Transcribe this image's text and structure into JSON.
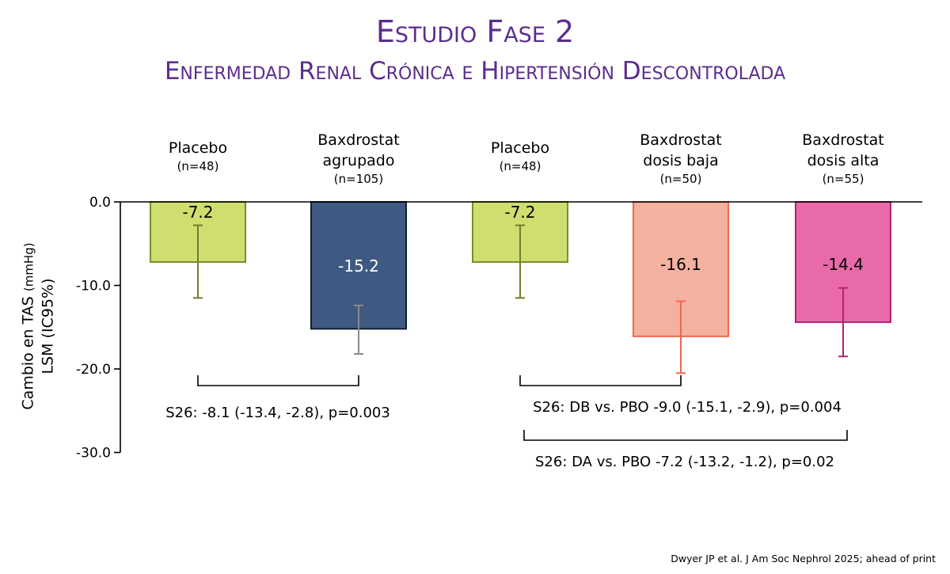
{
  "header": {
    "title": "Estudio Fase 2",
    "subtitle": "Enfermedad Renal Crónica e Hipertensión Descontrolada"
  },
  "chart_data": {
    "type": "bar",
    "ylabel_line1": "Cambio en TAS",
    "ylabel_unit": "(mmHg)",
    "ylabel_line2": "LSM (IC95%)",
    "ylim": [
      -30,
      0
    ],
    "yticks": [
      {
        "value": 0,
        "label": "0.0"
      },
      {
        "value": -10,
        "label": "-10.0"
      },
      {
        "value": -20,
        "label": "-20.0"
      },
      {
        "value": -30,
        "label": "-30.0"
      }
    ],
    "categories": [
      {
        "lines": [
          "Placebo"
        ],
        "n": "(n=48)"
      },
      {
        "lines": [
          "Baxdrostat",
          "agrupado"
        ],
        "n": "(n=105)"
      },
      {
        "lines": [
          "Placebo"
        ],
        "n": "(n=48)"
      },
      {
        "lines": [
          "Baxdrostat",
          "dosis baja"
        ],
        "n": "(n=50)"
      },
      {
        "lines": [
          "Baxdrostat",
          "dosis alta"
        ],
        "n": "(n=55)"
      }
    ],
    "values": [
      -7.2,
      -15.2,
      -7.2,
      -16.1,
      -14.4
    ],
    "value_labels": [
      "-7.2",
      "-15.2",
      "-7.2",
      "-16.1",
      "-14.4"
    ],
    "ci": [
      [
        -11.5,
        -2.8
      ],
      [
        -18.2,
        -12.4
      ],
      [
        -11.5,
        -2.8
      ],
      [
        -20.5,
        -11.9
      ],
      [
        -18.5,
        -10.3
      ]
    ],
    "colors": {
      "fills": [
        "#cfde6e",
        "#3e5a82",
        "#cfde6e",
        "#f4b1a0",
        "#e96aa8"
      ],
      "strokes": [
        "#7b8d2e",
        "#0f1f33",
        "#7b8d2e",
        "#ea6a4f",
        "#b0246e"
      ],
      "errors": [
        "#6e7f2a",
        "#8a8a8a",
        "#6e7f2a",
        "#ea6a4f",
        "#b0246e"
      ],
      "labels": [
        "#000000",
        "#ffffff",
        "#000000",
        "#000000",
        "#000000"
      ],
      "title": "#5b2d8e"
    },
    "comparisons": [
      {
        "from": 0,
        "to": 1,
        "text": "S26: -8.1 (-13.4, -2.8), p=0.003"
      },
      {
        "from": 2,
        "to": 3,
        "text": "S26: DB vs. PBO -9.0 (-15.1, -2.9), p=0.004"
      },
      {
        "from": 2,
        "to": 4,
        "text": "S26: DA vs. PBO -7.2 (-13.2, -1.2), p=0.02"
      }
    ]
  },
  "footer": {
    "source": "Dwyer JP et al. J Am Soc Nephrol 2025; ahead of print"
  }
}
